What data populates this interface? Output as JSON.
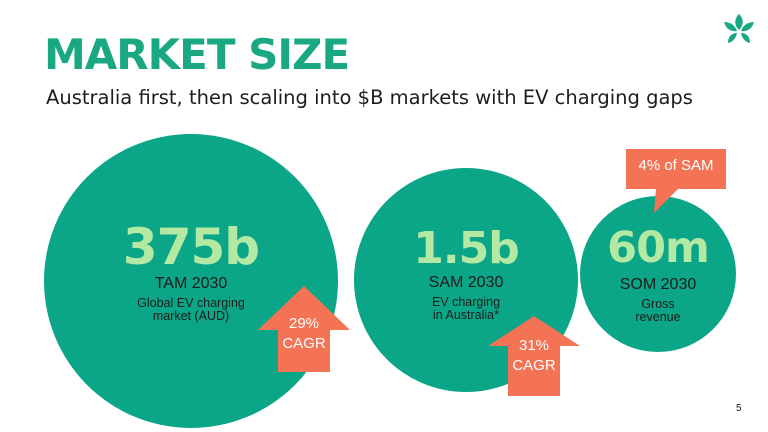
{
  "slide": {
    "title": "MARKET SIZE",
    "subtitle": "Australia first, then scaling into $B markets with EV charging gaps",
    "page_number": "5"
  },
  "markets": {
    "tam": {
      "value": "375b",
      "label": "TAM 2030",
      "desc_line1": "Global EV charging",
      "desc_line2": "market (AUD)"
    },
    "sam": {
      "value": "1.5b",
      "label": "SAM 2030",
      "desc_line1": "EV charging",
      "desc_line2": "in Australia*"
    },
    "som": {
      "value": "60m",
      "label": "SOM 2030",
      "desc_line1": "Gross",
      "desc_line2": "revenue"
    }
  },
  "growth": {
    "tam_pct": "29%",
    "tam_unit": "CAGR",
    "sam_pct": "31%",
    "sam_unit": "CAGR"
  },
  "callout": {
    "text": "4% of SAM"
  },
  "colors": {
    "brand_green": "#1aa882",
    "circle_green": "#0ba587",
    "value_green": "#b4e9a3",
    "accent_orange": "#f47355"
  },
  "icons": {
    "logo": "leaf-logo-icon"
  }
}
